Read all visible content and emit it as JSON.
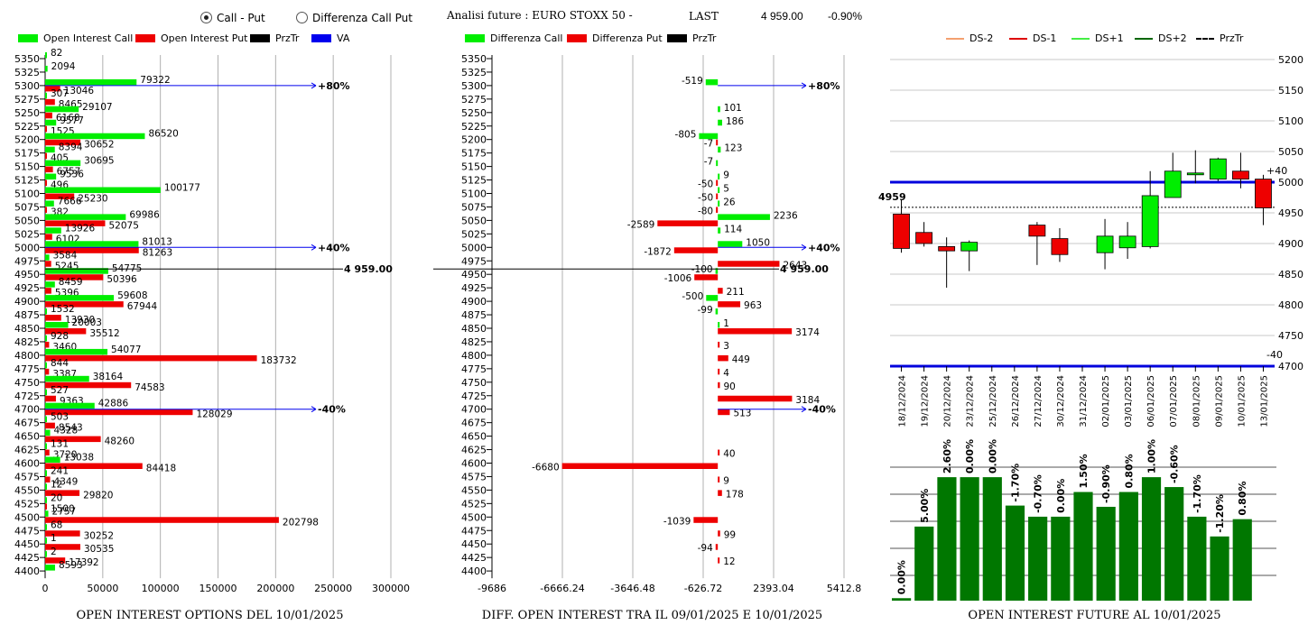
{
  "header": {
    "radio_call_put": "Call - Put",
    "radio_diff": "Differenza Call Put",
    "future_title": "Analisi future : EURO STOXX 50 -",
    "last_label": "LAST",
    "last_value": "4 959.00",
    "last_change": "-0.90%"
  },
  "colors": {
    "call": "#00ee00",
    "put": "#ee0000",
    "prztr": "#000000",
    "va": "#0000ee",
    "bar_green": "#007700"
  },
  "legend_left": [
    "Open Interest Call",
    "Open Interest Put",
    "PrzTr",
    "VA"
  ],
  "legend_mid": [
    "Differenza Call",
    "Differenza Put",
    "PrzTr"
  ],
  "legend_right": [
    "DS-2",
    "DS-1",
    "DS+1",
    "DS+2",
    "PrzTr"
  ],
  "titles": {
    "left": "OPEN INTEREST OPTIONS DEL 10/01/2025",
    "mid": "DIFF. OPEN INTEREST TRA IL 09/01/2025 E 10/01/2025",
    "right": "OPEN INTEREST FUTURE AL 10/01/2025"
  },
  "chart_data": [
    {
      "type": "bar",
      "orientation": "horizontal",
      "strikes": [
        5350,
        5325,
        5300,
        5275,
        5250,
        5225,
        5200,
        5175,
        5150,
        5125,
        5100,
        5075,
        5050,
        5025,
        5000,
        4975,
        4950,
        4925,
        4900,
        4875,
        4850,
        4825,
        4800,
        4775,
        4750,
        4725,
        4700,
        4675,
        4650,
        4625,
        4600,
        4575,
        4550,
        4525,
        4500,
        4475,
        4450,
        4425,
        4400
      ],
      "series": [
        {
          "name": "Open Interest Call",
          "values": [
            82,
            2094,
            79322,
            307,
            29107,
            9577,
            86520,
            8394,
            30695,
            9536,
            100177,
            7666,
            69986,
            13926,
            81013,
            3584,
            54775,
            8459,
            59608,
            1532,
            20003,
            928,
            54077,
            844,
            38164,
            527,
            42886,
            503,
            4328,
            131,
            13038,
            241,
            12,
            20,
            2757,
            68,
            1,
            2,
            8593
          ]
        },
        {
          "name": "Open Interest Put",
          "values": [
            0,
            0,
            13046,
            8465,
            6168,
            1525,
            30652,
            405,
            6757,
            496,
            25230,
            382,
            52075,
            6102,
            81263,
            5245,
            50396,
            5396,
            67944,
            13930,
            35512,
            3460,
            183732,
            3387,
            74583,
            9363,
            128029,
            8543,
            48260,
            3720,
            84418,
            4349,
            29820,
            1500,
            202798,
            30252,
            30535,
            17392,
            0
          ]
        }
      ],
      "annotations": [
        {
          "strike": 5300,
          "label": "+80%"
        },
        {
          "strike": 5000,
          "label": "+40%"
        },
        {
          "strike": 4950,
          "label": "4 959.00"
        },
        {
          "strike": 4700,
          "label": "-40%"
        }
      ],
      "xlim": [
        0,
        300000
      ],
      "xticks": [
        0,
        50000,
        100000,
        150000,
        200000,
        250000,
        300000
      ],
      "grid": true
    },
    {
      "type": "bar",
      "orientation": "horizontal",
      "strikes": [
        5350,
        5325,
        5300,
        5275,
        5250,
        5225,
        5200,
        5175,
        5150,
        5125,
        5100,
        5075,
        5050,
        5025,
        5000,
        4975,
        4950,
        4925,
        4900,
        4875,
        4850,
        4825,
        4800,
        4775,
        4750,
        4725,
        4700,
        4675,
        4650,
        4625,
        4600,
        4575,
        4550,
        4525,
        4500,
        4475,
        4450,
        4425,
        4400
      ],
      "series": [
        {
          "name": "Differenza Call",
          "values": [
            null,
            null,
            -519,
            null,
            101,
            186,
            -805,
            123,
            -7,
            9,
            5,
            26,
            2236,
            114,
            1050,
            null,
            -100,
            null,
            -500,
            -99,
            1,
            null,
            null,
            null,
            null,
            null,
            null,
            null,
            null,
            null,
            null,
            null,
            null,
            null,
            null,
            null,
            null,
            null,
            null
          ]
        },
        {
          "name": "Differenza Put",
          "values": [
            null,
            null,
            null,
            null,
            null,
            null,
            -7,
            null,
            null,
            -50,
            -50,
            -80,
            -2589,
            null,
            -1872,
            2643,
            -1006,
            211,
            963,
            null,
            3174,
            3,
            449,
            4,
            90,
            3184,
            513,
            null,
            null,
            40,
            -6680,
            9,
            178,
            null,
            -1039,
            99,
            -94,
            12,
            null
          ]
        }
      ],
      "annotations": [
        {
          "strike": 5300,
          "label": "+80%"
        },
        {
          "strike": 5000,
          "label": "+40%"
        },
        {
          "strike": 4950,
          "label": "4 959.00"
        },
        {
          "strike": 4700,
          "label": "-40%"
        }
      ],
      "xlim": [
        -9686,
        5412.8
      ],
      "xticks": [
        -9686,
        -6666.24,
        -3646.48,
        -626.72,
        2393.04,
        5412.8
      ],
      "grid": true
    },
    {
      "type": "candlestick",
      "dates": [
        "18/12/2024",
        "19/12/2024",
        "20/12/2024",
        "23/12/2024",
        "25/12/2024",
        "26/12/2024",
        "27/12/2024",
        "30/12/2024",
        "31/12/2024",
        "02/01/2025",
        "03/01/2025",
        "06/01/2025",
        "07/01/2025",
        "08/01/2025",
        "09/01/2025",
        "10/01/2025",
        "13/01/2025"
      ],
      "ohlc": [
        [
          4948,
          4972,
          4885,
          4892
        ],
        [
          4918,
          4935,
          4895,
          4900
        ],
        [
          4895,
          4910,
          4828,
          4888
        ],
        [
          4888,
          4905,
          4855,
          4902
        ],
        null,
        null,
        [
          4930,
          4935,
          4865,
          4912
        ],
        [
          4908,
          4925,
          4870,
          4882
        ],
        null,
        [
          4885,
          4940,
          4858,
          4912
        ],
        [
          4893,
          4935,
          4875,
          4912
        ],
        [
          4895,
          5018,
          4892,
          4978
        ],
        [
          4975,
          5048,
          4975,
          5018
        ],
        [
          5015,
          5052,
          4998,
          5015
        ],
        [
          5005,
          5040,
          5002,
          5038
        ],
        [
          5018,
          5048,
          4990,
          5005
        ],
        [
          5005,
          5012,
          4930,
          4958
        ]
      ],
      "ylim": [
        4700,
        5200
      ],
      "yticks": [
        4700,
        4750,
        4800,
        4850,
        4900,
        4950,
        5000,
        5050,
        5100,
        5150,
        5200
      ],
      "lines": [
        {
          "value": 5000,
          "label": "+40"
        },
        {
          "value": 4700,
          "label": "-40"
        }
      ],
      "last_label": "4959",
      "prztr": 4959
    },
    {
      "type": "bar",
      "categories": [
        "18/12/2024",
        "19/12/2024",
        "20/12/2024",
        "23/12/2024",
        "25/12/2024",
        "26/12/2024",
        "27/12/2024",
        "30/12/2024",
        "31/12/2024",
        "02/01/2025",
        "03/01/2025",
        "06/01/2025",
        "07/01/2025",
        "08/01/2025",
        "09/01/2025",
        "10/01/2025",
        "13/01/2025"
      ],
      "values": [
        2,
        60,
        100,
        100,
        100,
        77,
        68,
        68,
        88,
        76,
        88,
        100,
        92,
        68,
        52,
        66,
        null
      ],
      "labels": [
        "0.00%",
        "5.00%",
        "2.60%",
        "0.00%",
        "0.00%",
        "-1.70%",
        "-0.70%",
        "0.00%",
        "1.50%",
        "-0.90%",
        "0.80%",
        "1.00%",
        "-0.60%",
        "-1.70%",
        "-1.20%",
        "0.80%",
        ""
      ],
      "grid": true
    }
  ]
}
